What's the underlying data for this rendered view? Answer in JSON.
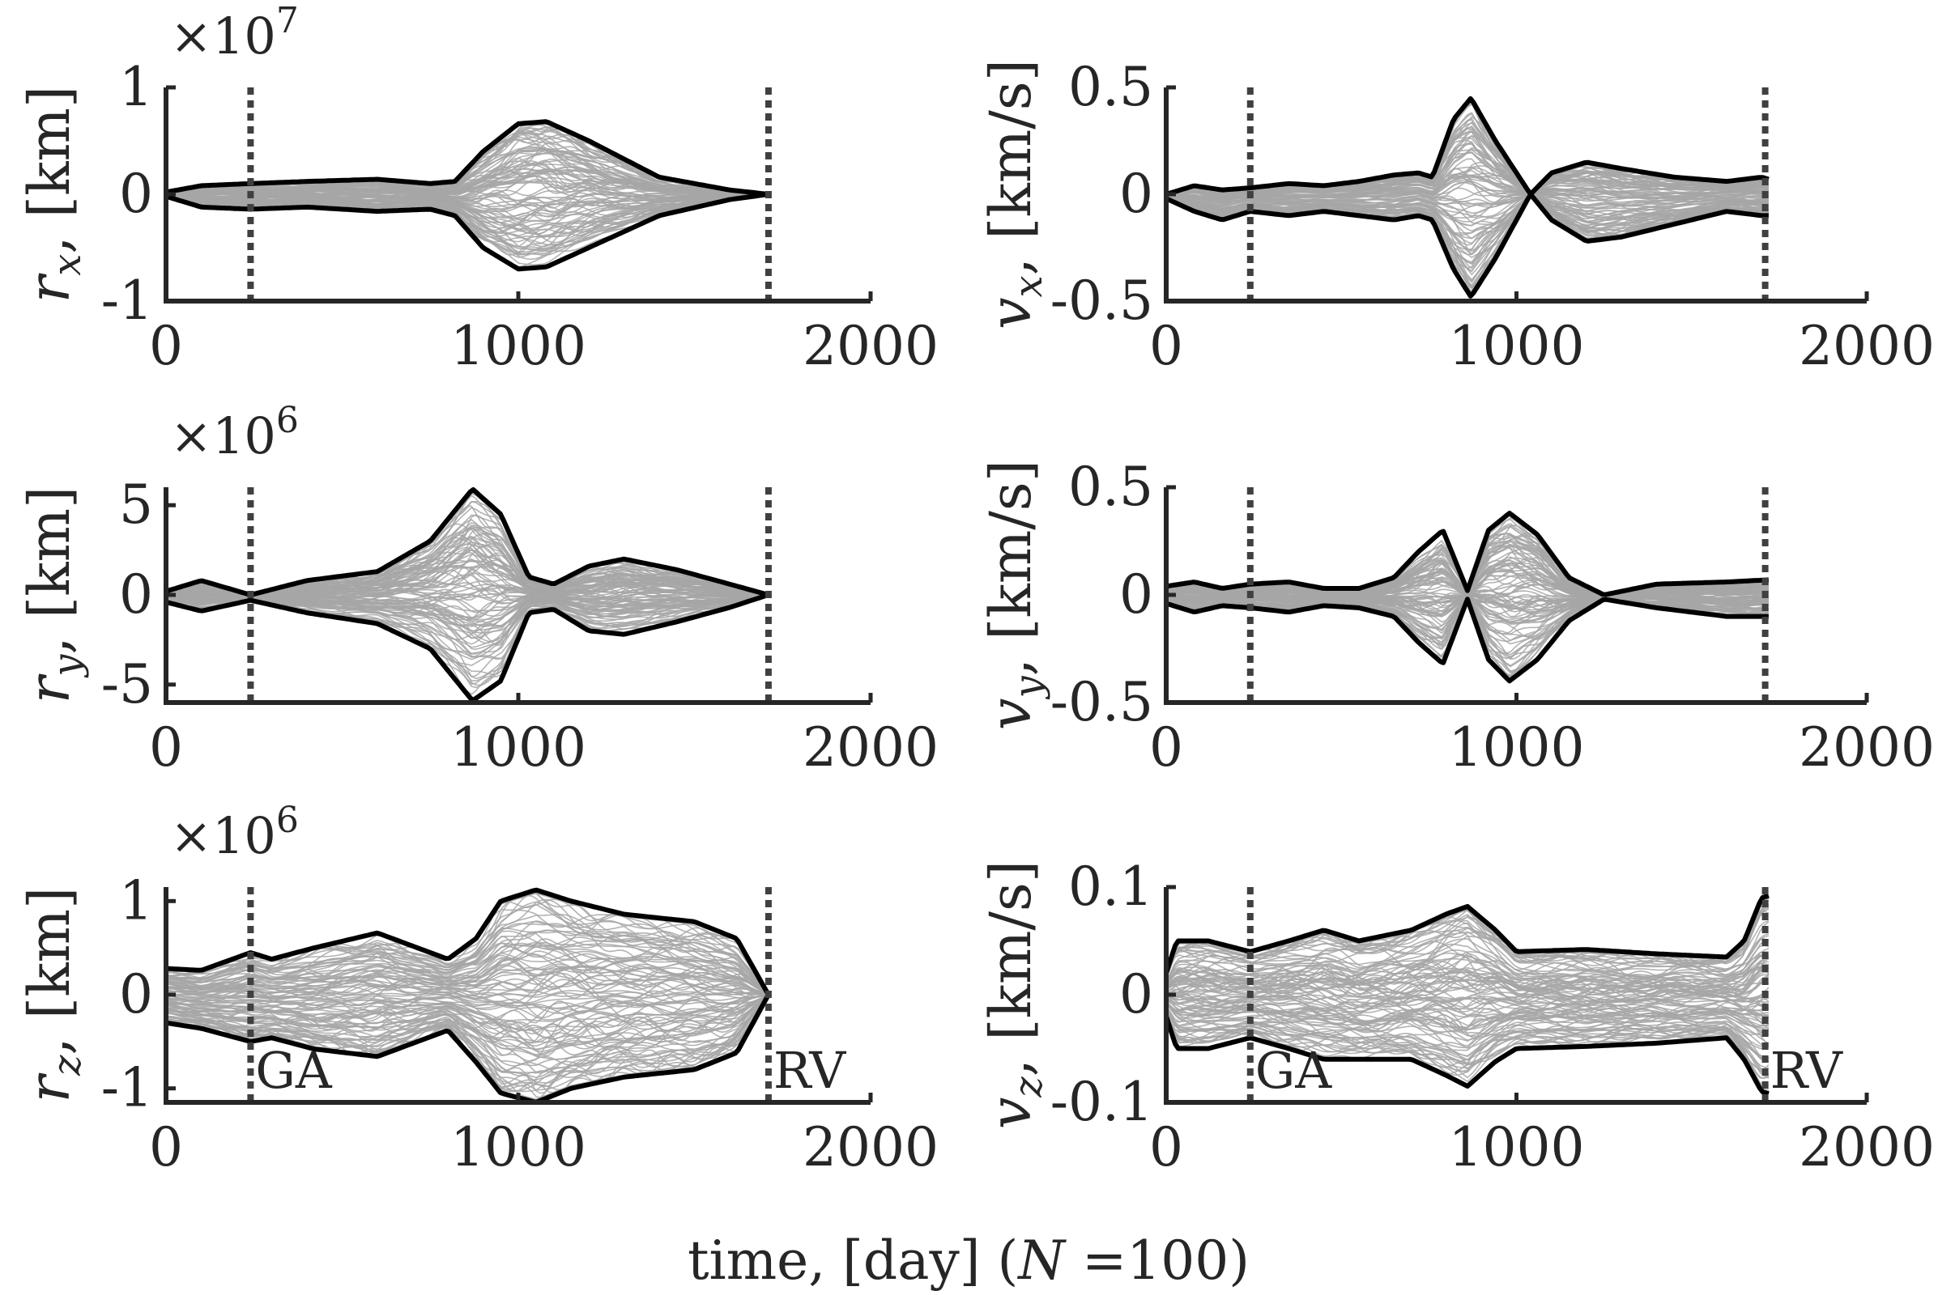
{
  "figure": {
    "xlabel": "time, [day] (N =100)",
    "events": [
      {
        "label": "GA",
        "t": 240
      },
      {
        "label": "RV",
        "t": 1710
      }
    ],
    "colors": {
      "envelope": "#000000",
      "samples": "#a6a6a6",
      "event_line": "#404040",
      "axis": "#262626"
    }
  },
  "chart_data": [
    {
      "type": "line",
      "id": "rx",
      "ylabel_var": "r",
      "ylabel_sub": "x",
      "ylabel_unit": "[km]",
      "exponent_label": "×10",
      "exponent_power": "7",
      "xlim": [
        0,
        2000
      ],
      "ylim": [
        -1,
        1
      ],
      "xticks": [
        0,
        1000,
        2000
      ],
      "xtick_labels": [
        "0",
        "1000",
        "2000"
      ],
      "yticks": [
        -1,
        0,
        1
      ],
      "ytick_labels": [
        "-1",
        "0",
        "1"
      ],
      "envelope_upper": [
        [
          0,
          0.02
        ],
        [
          100,
          0.08
        ],
        [
          240,
          0.1
        ],
        [
          400,
          0.12
        ],
        [
          600,
          0.14
        ],
        [
          750,
          0.1
        ],
        [
          820,
          0.12
        ],
        [
          900,
          0.4
        ],
        [
          1000,
          0.66
        ],
        [
          1080,
          0.68
        ],
        [
          1200,
          0.5
        ],
        [
          1400,
          0.16
        ],
        [
          1600,
          0.04
        ],
        [
          1710,
          0.0
        ]
      ],
      "envelope_lower": [
        [
          0,
          -0.02
        ],
        [
          100,
          -0.12
        ],
        [
          240,
          -0.14
        ],
        [
          400,
          -0.12
        ],
        [
          600,
          -0.16
        ],
        [
          750,
          -0.14
        ],
        [
          820,
          -0.2
        ],
        [
          900,
          -0.5
        ],
        [
          1000,
          -0.7
        ],
        [
          1080,
          -0.68
        ],
        [
          1200,
          -0.5
        ],
        [
          1400,
          -0.2
        ],
        [
          1600,
          -0.05
        ],
        [
          1710,
          0.0
        ]
      ],
      "events_labeled": false
    },
    {
      "type": "line",
      "id": "vx",
      "ylabel_var": "v",
      "ylabel_sub": "x",
      "ylabel_unit": "[km/s]",
      "xlim": [
        0,
        2000
      ],
      "ylim": [
        -0.5,
        0.5
      ],
      "xticks": [
        0,
        1000,
        2000
      ],
      "xtick_labels": [
        "0",
        "1000",
        "2000"
      ],
      "yticks": [
        -0.5,
        0,
        0.5
      ],
      "ytick_labels": [
        "-0.5",
        "0",
        "0.5"
      ],
      "envelope_upper": [
        [
          0,
          0.0
        ],
        [
          80,
          0.04
        ],
        [
          160,
          0.02
        ],
        [
          240,
          0.03
        ],
        [
          350,
          0.05
        ],
        [
          450,
          0.04
        ],
        [
          550,
          0.06
        ],
        [
          650,
          0.09
        ],
        [
          720,
          0.1
        ],
        [
          760,
          0.08
        ],
        [
          820,
          0.35
        ],
        [
          870,
          0.45
        ],
        [
          940,
          0.25
        ],
        [
          1000,
          0.1
        ],
        [
          1040,
          0.0
        ],
        [
          1100,
          0.1
        ],
        [
          1200,
          0.15
        ],
        [
          1300,
          0.12
        ],
        [
          1450,
          0.08
        ],
        [
          1600,
          0.06
        ],
        [
          1700,
          0.08
        ],
        [
          1720,
          0.07
        ]
      ],
      "envelope_lower": [
        [
          0,
          -0.02
        ],
        [
          80,
          -0.08
        ],
        [
          160,
          -0.12
        ],
        [
          240,
          -0.08
        ],
        [
          350,
          -0.1
        ],
        [
          450,
          -0.08
        ],
        [
          550,
          -0.1
        ],
        [
          650,
          -0.12
        ],
        [
          720,
          -0.1
        ],
        [
          760,
          -0.12
        ],
        [
          820,
          -0.35
        ],
        [
          870,
          -0.48
        ],
        [
          940,
          -0.3
        ],
        [
          1000,
          -0.12
        ],
        [
          1040,
          0.0
        ],
        [
          1100,
          -0.12
        ],
        [
          1200,
          -0.22
        ],
        [
          1300,
          -0.2
        ],
        [
          1450,
          -0.14
        ],
        [
          1600,
          -0.08
        ],
        [
          1700,
          -0.1
        ],
        [
          1720,
          -0.1
        ]
      ],
      "events_labeled": false
    },
    {
      "type": "line",
      "id": "ry",
      "ylabel_var": "r",
      "ylabel_sub": "y",
      "ylabel_unit": "[km]",
      "exponent_label": "×10",
      "exponent_power": "6",
      "xlim": [
        0,
        2000
      ],
      "ylim": [
        -6,
        6
      ],
      "xticks": [
        0,
        1000,
        2000
      ],
      "xtick_labels": [
        "0",
        "1000",
        "2000"
      ],
      "yticks": [
        -5,
        0,
        5
      ],
      "ytick_labels": [
        "-5",
        "0",
        "5"
      ],
      "envelope_upper": [
        [
          0,
          0.2
        ],
        [
          100,
          0.8
        ],
        [
          240,
          0.0
        ],
        [
          400,
          0.8
        ],
        [
          600,
          1.3
        ],
        [
          750,
          3.0
        ],
        [
          870,
          5.9
        ],
        [
          950,
          4.5
        ],
        [
          1030,
          1.0
        ],
        [
          1100,
          0.6
        ],
        [
          1200,
          1.6
        ],
        [
          1300,
          2.0
        ],
        [
          1450,
          1.4
        ],
        [
          1600,
          0.6
        ],
        [
          1710,
          0.0
        ]
      ],
      "envelope_lower": [
        [
          0,
          -0.4
        ],
        [
          100,
          -0.9
        ],
        [
          240,
          -0.3
        ],
        [
          400,
          -1.0
        ],
        [
          600,
          -1.6
        ],
        [
          750,
          -3.0
        ],
        [
          870,
          -5.9
        ],
        [
          950,
          -4.8
        ],
        [
          1030,
          -1.0
        ],
        [
          1100,
          -0.8
        ],
        [
          1200,
          -2.0
        ],
        [
          1300,
          -2.2
        ],
        [
          1450,
          -1.5
        ],
        [
          1600,
          -0.7
        ],
        [
          1710,
          0.0
        ]
      ],
      "events_labeled": false
    },
    {
      "type": "line",
      "id": "vy",
      "ylabel_var": "v",
      "ylabel_sub": "y",
      "ylabel_unit": "[km/s]",
      "xlim": [
        0,
        2000
      ],
      "ylim": [
        -0.5,
        0.5
      ],
      "xticks": [
        0,
        1000,
        2000
      ],
      "xtick_labels": [
        "0",
        "1000",
        "2000"
      ],
      "yticks": [
        -0.5,
        0,
        0.5
      ],
      "ytick_labels": [
        "-0.5",
        "0",
        "0.5"
      ],
      "envelope_upper": [
        [
          0,
          0.04
        ],
        [
          80,
          0.06
        ],
        [
          160,
          0.03
        ],
        [
          240,
          0.05
        ],
        [
          350,
          0.06
        ],
        [
          450,
          0.03
        ],
        [
          550,
          0.03
        ],
        [
          650,
          0.08
        ],
        [
          720,
          0.2
        ],
        [
          790,
          0.3
        ],
        [
          860,
          0.02
        ],
        [
          920,
          0.3
        ],
        [
          980,
          0.38
        ],
        [
          1060,
          0.28
        ],
        [
          1150,
          0.08
        ],
        [
          1250,
          0.0
        ],
        [
          1400,
          0.05
        ],
        [
          1600,
          0.06
        ],
        [
          1720,
          0.07
        ]
      ],
      "envelope_lower": [
        [
          0,
          -0.04
        ],
        [
          80,
          -0.08
        ],
        [
          160,
          -0.05
        ],
        [
          240,
          -0.06
        ],
        [
          350,
          -0.08
        ],
        [
          450,
          -0.05
        ],
        [
          550,
          -0.06
        ],
        [
          650,
          -0.1
        ],
        [
          720,
          -0.22
        ],
        [
          790,
          -0.32
        ],
        [
          860,
          -0.02
        ],
        [
          920,
          -0.3
        ],
        [
          980,
          -0.4
        ],
        [
          1060,
          -0.3
        ],
        [
          1150,
          -0.12
        ],
        [
          1250,
          -0.02
        ],
        [
          1400,
          -0.06
        ],
        [
          1600,
          -0.1
        ],
        [
          1720,
          -0.1
        ]
      ],
      "events_labeled": false
    },
    {
      "type": "line",
      "id": "rz",
      "ylabel_var": "r",
      "ylabel_sub": "z",
      "ylabel_unit": "[km]",
      "exponent_label": "×10",
      "exponent_power": "6",
      "xlim": [
        0,
        2000
      ],
      "ylim": [
        -1.15,
        1.15
      ],
      "xticks": [
        0,
        1000,
        2000
      ],
      "xtick_labels": [
        "0",
        "1000",
        "2000"
      ],
      "yticks": [
        -1,
        0,
        1
      ],
      "ytick_labels": [
        "-1",
        "0",
        "1"
      ],
      "envelope_upper": [
        [
          0,
          0.28
        ],
        [
          100,
          0.26
        ],
        [
          240,
          0.45
        ],
        [
          300,
          0.38
        ],
        [
          420,
          0.5
        ],
        [
          600,
          0.66
        ],
        [
          700,
          0.52
        ],
        [
          800,
          0.38
        ],
        [
          880,
          0.6
        ],
        [
          950,
          1.0
        ],
        [
          1050,
          1.12
        ],
        [
          1150,
          1.0
        ],
        [
          1300,
          0.86
        ],
        [
          1500,
          0.78
        ],
        [
          1620,
          0.6
        ],
        [
          1710,
          0.0
        ]
      ],
      "envelope_lower": [
        [
          0,
          -0.3
        ],
        [
          100,
          -0.36
        ],
        [
          240,
          -0.5
        ],
        [
          300,
          -0.46
        ],
        [
          420,
          -0.58
        ],
        [
          600,
          -0.66
        ],
        [
          700,
          -0.52
        ],
        [
          800,
          -0.38
        ],
        [
          880,
          -0.72
        ],
        [
          950,
          -1.05
        ],
        [
          1050,
          -1.15
        ],
        [
          1150,
          -1.0
        ],
        [
          1300,
          -0.88
        ],
        [
          1500,
          -0.8
        ],
        [
          1620,
          -0.62
        ],
        [
          1710,
          0.0
        ]
      ],
      "events_labeled": true
    },
    {
      "type": "line",
      "id": "vz",
      "ylabel_var": "v",
      "ylabel_sub": "z",
      "ylabel_unit": "[km/s]",
      "xlim": [
        0,
        2000
      ],
      "ylim": [
        -0.1,
        0.1
      ],
      "xticks": [
        0,
        1000,
        2000
      ],
      "xtick_labels": [
        "0",
        "1000",
        "2000"
      ],
      "yticks": [
        -0.1,
        0,
        0.1
      ],
      "ytick_labels": [
        "-0.1",
        "0",
        "0.1"
      ],
      "envelope_upper": [
        [
          0,
          0.02
        ],
        [
          30,
          0.05
        ],
        [
          120,
          0.05
        ],
        [
          240,
          0.04
        ],
        [
          350,
          0.05
        ],
        [
          450,
          0.06
        ],
        [
          550,
          0.05
        ],
        [
          700,
          0.06
        ],
        [
          800,
          0.075
        ],
        [
          860,
          0.082
        ],
        [
          940,
          0.06
        ],
        [
          1000,
          0.04
        ],
        [
          1200,
          0.042
        ],
        [
          1400,
          0.038
        ],
        [
          1600,
          0.035
        ],
        [
          1650,
          0.05
        ],
        [
          1700,
          0.09
        ],
        [
          1720,
          0.092
        ]
      ],
      "envelope_lower": [
        [
          0,
          -0.02
        ],
        [
          30,
          -0.05
        ],
        [
          120,
          -0.05
        ],
        [
          240,
          -0.04
        ],
        [
          350,
          -0.05
        ],
        [
          450,
          -0.06
        ],
        [
          550,
          -0.06
        ],
        [
          700,
          -0.06
        ],
        [
          800,
          -0.075
        ],
        [
          860,
          -0.085
        ],
        [
          940,
          -0.062
        ],
        [
          1000,
          -0.05
        ],
        [
          1200,
          -0.048
        ],
        [
          1400,
          -0.045
        ],
        [
          1600,
          -0.04
        ],
        [
          1650,
          -0.06
        ],
        [
          1700,
          -0.09
        ],
        [
          1720,
          -0.092
        ]
      ],
      "events_labeled": true
    }
  ]
}
